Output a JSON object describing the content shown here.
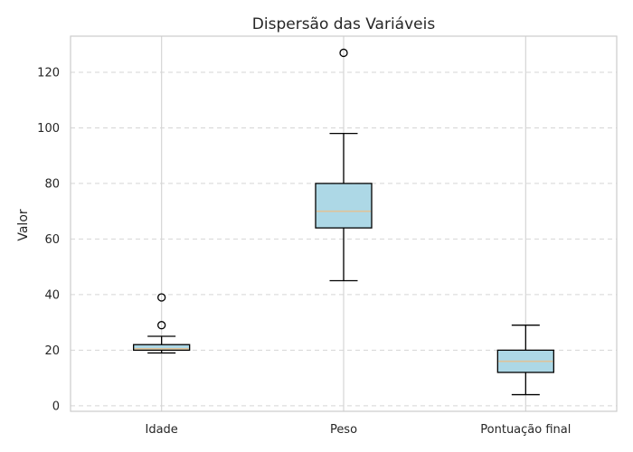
{
  "chart_data": {
    "type": "boxplot",
    "title": "Dispersão das Variáveis",
    "xlabel": "",
    "ylabel": "Valor",
    "ylim": [
      -2,
      133
    ],
    "yticks": [
      0,
      20,
      40,
      60,
      80,
      100,
      120
    ],
    "grid": {
      "y": "dashed",
      "x": "solid"
    },
    "colors": {
      "box_fill": "#add8e6",
      "median": "#e0c39a",
      "grid": "#d5d5d5",
      "frame": "#cccccc",
      "stroke": "#000000"
    },
    "categories": [
      "Idade",
      "Peso",
      "Pontuação final"
    ],
    "boxes": [
      {
        "label": "Idade",
        "whisker_low": 19,
        "q1": 20,
        "median": 20.5,
        "q3": 22,
        "whisker_high": 25,
        "outliers": [
          29,
          39
        ]
      },
      {
        "label": "Peso",
        "whisker_low": 45,
        "q1": 64,
        "median": 70,
        "q3": 80,
        "whisker_high": 98,
        "outliers": [
          127
        ]
      },
      {
        "label": "Pontuação final",
        "whisker_low": 4,
        "q1": 12,
        "median": 16,
        "q3": 20,
        "whisker_high": 29,
        "outliers": []
      }
    ]
  }
}
